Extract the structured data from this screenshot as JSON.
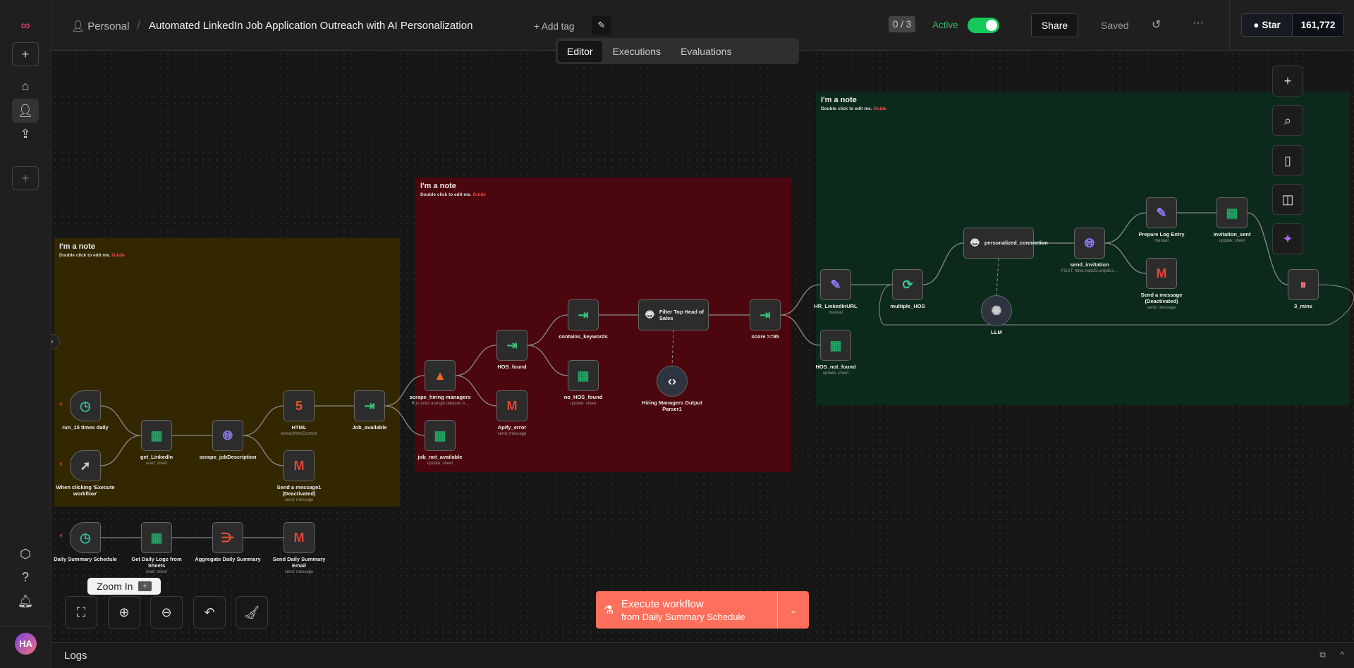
{
  "header": {
    "project": "Personal",
    "title": "Automated LinkedIn Job Application Outreach with AI Personalization",
    "add_tag": "+ Add tag",
    "counter": "0 / 3",
    "active_label": "Active",
    "active": true,
    "share": "Share",
    "saved": "Saved",
    "github_star": "Star",
    "github_count": "161,772"
  },
  "tabs": [
    {
      "label": "Editor",
      "active": true
    },
    {
      "label": "Executions"
    },
    {
      "label": "Evaluations"
    }
  ],
  "notes": [
    {
      "title": "I'm a note",
      "text": "Double click to edit me.",
      "link": "Guide",
      "color": "#332700"
    },
    {
      "title": "I'm a note",
      "text": "Double click to edit me.",
      "link": "Guide",
      "color": "#4b070d"
    },
    {
      "title": "I'm a note",
      "text": "Double click to edit me.",
      "link": "Guide",
      "color": "#0c2a1b"
    }
  ],
  "nodes": [
    {
      "label": "run_15 times daily",
      "icon": "clock-icon"
    },
    {
      "label": "When clicking 'Execute workflow'",
      "icon": "cursor-icon"
    },
    {
      "label": "get_LinkedIn",
      "sub": "read: sheet",
      "icon": "sheets-icon"
    },
    {
      "label": "scrape_jobDescription",
      "icon": "globe-icon"
    },
    {
      "label": "HTML",
      "sub": "extractHtmlContent",
      "icon": "html5-icon"
    },
    {
      "label": "Send a message1 (Deactivated)",
      "sub": "send: message",
      "icon": "gmail-icon"
    },
    {
      "label": "Job_available",
      "icon": "if-icon"
    },
    {
      "label": "scrape_hiring managers",
      "sub": "Run actor and get dataset: A...",
      "icon": "apify-icon"
    },
    {
      "label": "job_not_available",
      "sub": "update: sheet",
      "icon": "sheets-icon"
    },
    {
      "label": "HOS_found",
      "icon": "if-icon"
    },
    {
      "label": "Apify_error",
      "sub": "send: message",
      "icon": "gmail-icon"
    },
    {
      "label": "contains_keywords",
      "icon": "if-icon"
    },
    {
      "label": "no_HOS_found",
      "sub": "update: sheet",
      "icon": "sheets-icon"
    },
    {
      "label": "Filter Top Head of Sales",
      "icon": "robot-icon"
    },
    {
      "label": "Hiring Managers Output Parser1",
      "icon": "code-icon"
    },
    {
      "label": "score >=95",
      "icon": "if-icon"
    },
    {
      "label": "HR_LinkedInURL",
      "sub": "manual",
      "icon": "pencil-icon"
    },
    {
      "label": "HOS_not_found",
      "sub": "update: sheet",
      "icon": "sheets-icon"
    },
    {
      "label": "multiple_HOS",
      "icon": "loop-icon"
    },
    {
      "label": "personalized_connection",
      "icon": "robot-icon"
    },
    {
      "label": "LLM",
      "icon": "openai-icon"
    },
    {
      "label": "send_invitation",
      "sub": "POST: https://api25.unipile.c...",
      "icon": "globe-icon"
    },
    {
      "label": "Prepare Log Entry",
      "sub": "manual",
      "icon": "pencil-icon"
    },
    {
      "label": "Invitation_sent",
      "sub": "update: sheet",
      "icon": "sheets-icon"
    },
    {
      "label": "Send a message (Deactivated)",
      "sub": "send: message",
      "icon": "gmail-icon"
    },
    {
      "label": "3_mins",
      "icon": "pause-icon"
    },
    {
      "label": "Daily Summary Schedule",
      "icon": "clock-icon"
    },
    {
      "label": "Get Daily Logs from Sheets",
      "sub": "read: sheet",
      "icon": "sheets-icon"
    },
    {
      "label": "Aggregate Daily Summary",
      "icon": "aggregate-icon"
    },
    {
      "label": "Send Daily Summary Email",
      "sub": "send: message",
      "icon": "gmail-icon"
    }
  ],
  "tooltip": {
    "text": "Zoom In",
    "key": "+"
  },
  "execute": {
    "label": "Execute workflow",
    "sub": "from Daily Summary Schedule",
    "color": "#ff6f5c"
  },
  "logs": {
    "label": "Logs"
  },
  "user": {
    "initials": "HA"
  }
}
